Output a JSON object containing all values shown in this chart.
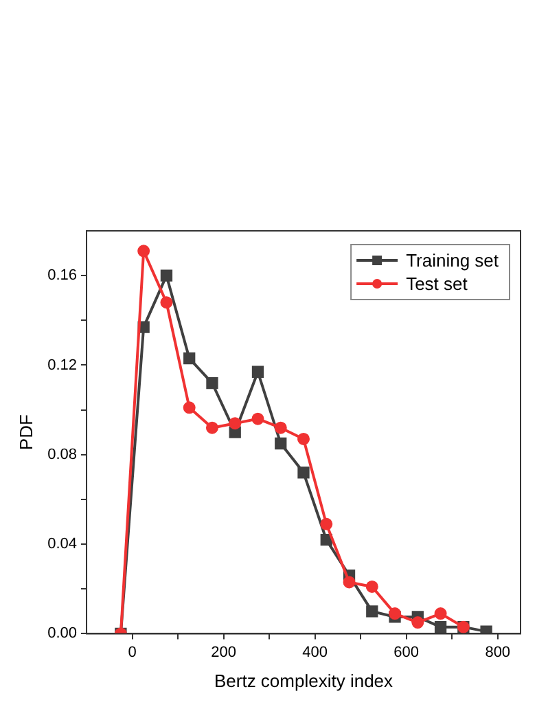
{
  "chart_data": {
    "type": "line",
    "xlabel": "Bertz complexity index",
    "ylabel": "PDF",
    "x": [
      -25,
      25,
      75,
      125,
      175,
      225,
      275,
      325,
      375,
      425,
      475,
      525,
      575,
      625,
      675,
      725,
      775
    ],
    "series": [
      {
        "name": "Training set",
        "color": "#404040",
        "marker": "square",
        "values": [
          0,
          0.137,
          0.16,
          0.123,
          0.112,
          0.09,
          0.117,
          0.085,
          0.072,
          0.042,
          0.026,
          0.01,
          0.0075,
          0.0075,
          0.003,
          0.003,
          0.001
        ]
      },
      {
        "name": "Test set",
        "color": "#f03232",
        "marker": "circle",
        "values": [
          0,
          0.171,
          0.148,
          0.101,
          0.092,
          0.094,
          0.096,
          0.092,
          0.087,
          0.049,
          0.023,
          0.021,
          0.009,
          0.005,
          0.009,
          0.003,
          null
        ]
      }
    ],
    "xlim": [
      -100,
      850
    ],
    "xticks": [
      0,
      {
        "value": 100,
        "label": null
      },
      200,
      {
        "value": 300,
        "label": null
      },
      400,
      {
        "value": 500,
        "label": null
      },
      600,
      {
        "value": 700,
        "label": null
      },
      800
    ],
    "ylim": [
      0,
      0.18
    ],
    "yticks": [
      {
        "value": 0,
        "label": "0.00"
      },
      {
        "value": 0.02,
        "label": null
      },
      {
        "value": 0.04,
        "label": "0.04"
      },
      {
        "value": 0.06,
        "label": null
      },
      {
        "value": 0.08,
        "label": "0.08"
      },
      {
        "value": 0.1,
        "label": null
      },
      {
        "value": 0.12,
        "label": "0.12"
      },
      {
        "value": 0.14,
        "label": null
      },
      {
        "value": 0.16,
        "label": "0.16"
      }
    ],
    "grid": false,
    "legend": "top right",
    "line_style": "solid"
  }
}
